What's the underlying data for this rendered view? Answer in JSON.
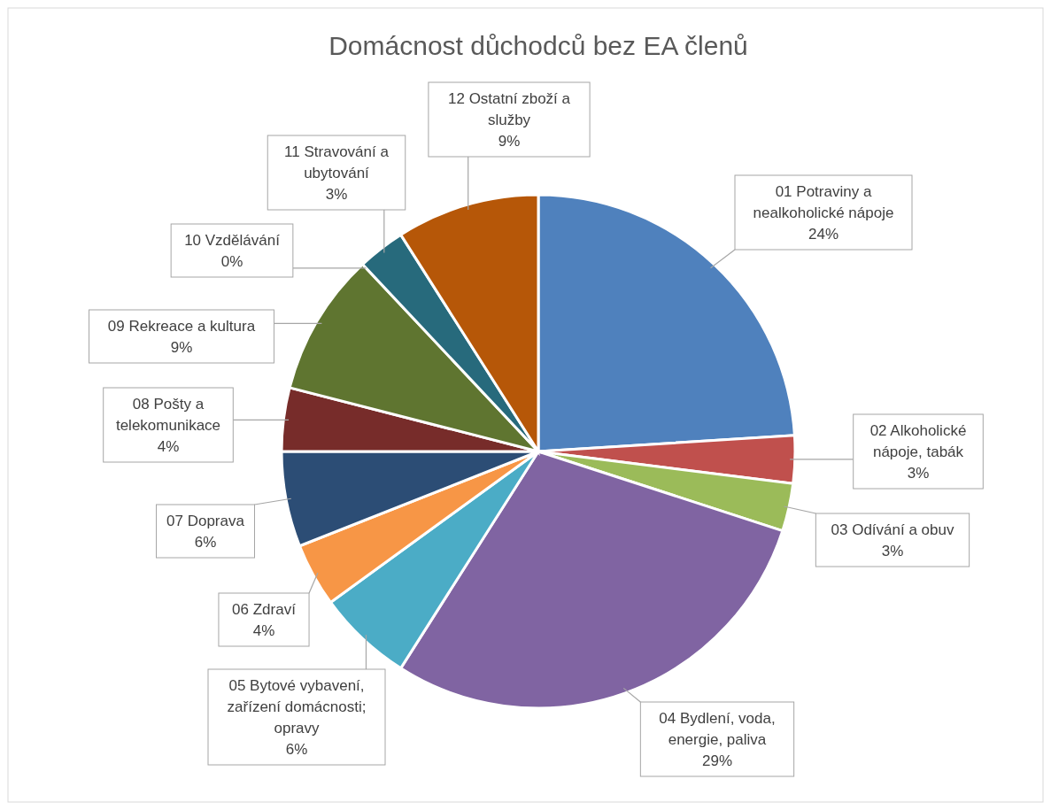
{
  "chart_data": {
    "type": "pie",
    "title": "Domácnost důchodců bez EA členů",
    "categories": [
      "01 Potraviny a nealkoholické nápoje",
      "02 Alkoholické nápoje, tabák",
      "03 Odívání a obuv",
      "04 Bydlení, voda, energie, paliva",
      "05 Bytové vybavení, zařízení domácnosti; opravy",
      "06 Zdraví",
      "07 Doprava",
      "08 Pošty a telekomunikace",
      "09 Rekreace a kultura",
      "10 Vzdělávání",
      "11 Stravování a ubytování",
      "12 Ostatní zboží a služby"
    ],
    "values": [
      24,
      3,
      3,
      29,
      6,
      4,
      6,
      4,
      9,
      0,
      3,
      9
    ],
    "value_labels": [
      "24%",
      "3%",
      "3%",
      "29%",
      "6%",
      "4%",
      "6%",
      "4%",
      "9%",
      "0%",
      "3%",
      "9%"
    ],
    "colors": [
      "#4f81bd",
      "#c0504d",
      "#9bbb59",
      "#8064a2",
      "#4bacc6",
      "#f79646",
      "#2c4d75",
      "#772c2a",
      "#5f7530",
      "#4d3b62",
      "#276a7c",
      "#b65708"
    ]
  }
}
